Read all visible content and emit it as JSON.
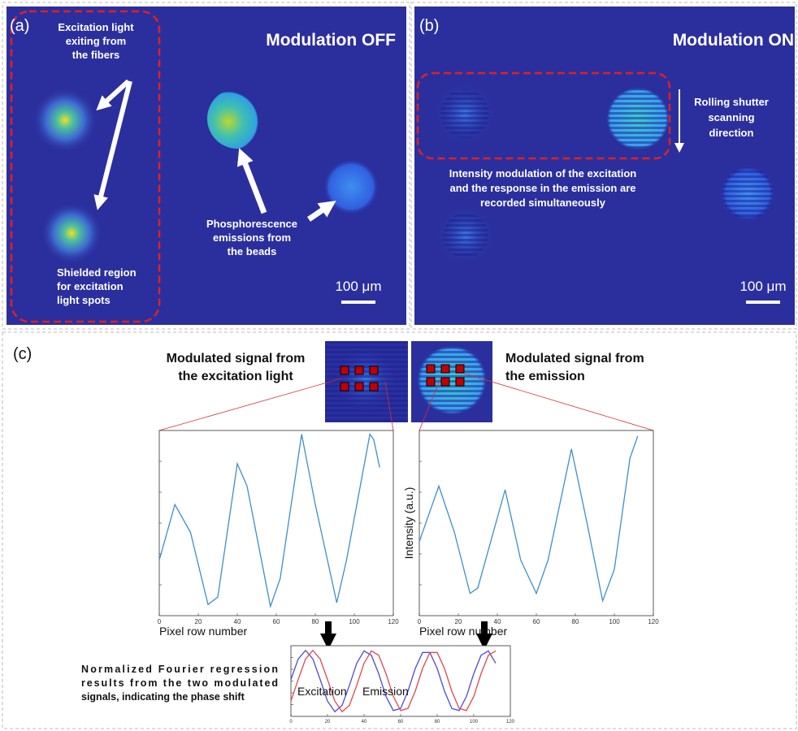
{
  "panel_a": {
    "label": "(a)",
    "title": "Modulation OFF",
    "fiber_note": [
      "Excitation light",
      "exiting from",
      "the fibers"
    ],
    "shield_note": [
      "Shielded region",
      "for excitation",
      "light spots"
    ],
    "beads_note": [
      "Phosphorescence",
      "emissions from",
      "the beads"
    ],
    "scale_bar": "100 μm"
  },
  "panel_b": {
    "label": "(b)",
    "title": "Modulation ON",
    "shutter_note": [
      "Rolling shutter",
      "scanning",
      "direction"
    ],
    "modulation_note": [
      "Intensity modulation of the excitation",
      "and the response in the emission are",
      "recorded simultaneously"
    ],
    "scale_bar": "100 μm"
  },
  "panel_c": {
    "label": "(c)",
    "excitation_title": [
      "Modulated signal from",
      "the excitation light"
    ],
    "emission_title": [
      "Modulated signal from",
      "the emission"
    ],
    "plots": [
      {
        "x": [
          0,
          8,
          16,
          25,
          30,
          40,
          45,
          57,
          62,
          73,
          80,
          91,
          96,
          108,
          110,
          113
        ],
        "values": [
          0.3,
          0.6,
          0.45,
          0.06,
          0.1,
          0.82,
          0.7,
          0.05,
          0.2,
          0.98,
          0.6,
          0.07,
          0.3,
          0.98,
          0.95,
          0.8
        ],
        "color": "#3d8fc9",
        "xlim": [
          0,
          120
        ],
        "ylim": [
          0,
          1
        ],
        "xticks": [
          0,
          20,
          40,
          60,
          80,
          100,
          120
        ],
        "xlabel": "Pixel row number"
      },
      {
        "x": [
          0,
          10,
          18,
          26,
          30,
          44,
          52,
          60,
          66,
          78,
          86,
          94,
          100,
          108,
          112
        ],
        "values": [
          0.4,
          0.7,
          0.45,
          0.12,
          0.15,
          0.68,
          0.3,
          0.12,
          0.3,
          0.9,
          0.5,
          0.08,
          0.25,
          0.85,
          0.97
        ],
        "color": "#3d8fc9",
        "xlim": [
          0,
          120
        ],
        "ylim": [
          0,
          1
        ],
        "xticks": [
          0,
          20,
          40,
          60,
          80,
          100,
          120
        ],
        "xlabel": "Pixel row number",
        "ylabel": "Intensity (a.u.)"
      }
    ],
    "regression": {
      "note": [
        "Normalized Fourier regression",
        "results from the two modulated",
        "signals, indicating the phase shift"
      ],
      "x": [
        0,
        4,
        8,
        12,
        16,
        20,
        24,
        28,
        32,
        36,
        40,
        44,
        48,
        52,
        56,
        60,
        64,
        68,
        72,
        76,
        80,
        84,
        88,
        92,
        96,
        100,
        104,
        108,
        112
      ],
      "series": [
        {
          "name": "Excitation",
          "color": "#4a4adf",
          "values": [
            0.05,
            0.72,
            1,
            0.72,
            0.05,
            -0.65,
            -1,
            -0.79,
            -0.14,
            0.58,
            0.98,
            0.84,
            0.24,
            -0.5,
            -0.96,
            -0.89,
            -0.33,
            0.41,
            0.93,
            0.93,
            0.41,
            -0.33,
            -0.89,
            -0.96,
            -0.5,
            0.24,
            0.84,
            0.98,
            0.58
          ]
        },
        {
          "name": "Emission",
          "color": "#e0474c",
          "values": [
            -0.65,
            0.05,
            0.72,
            1,
            0.72,
            0.05,
            -0.65,
            -1,
            -0.79,
            -0.14,
            0.58,
            0.98,
            0.84,
            0.24,
            -0.5,
            -0.96,
            -0.89,
            -0.33,
            0.41,
            0.93,
            0.93,
            0.41,
            -0.33,
            -0.89,
            -0.96,
            -0.5,
            0.24,
            0.84,
            0.98
          ]
        }
      ],
      "xlim": [
        0,
        120
      ],
      "ylim": [
        -1.15,
        1.15
      ],
      "xticks": [
        0,
        20,
        40,
        60,
        80,
        100,
        120
      ]
    }
  }
}
